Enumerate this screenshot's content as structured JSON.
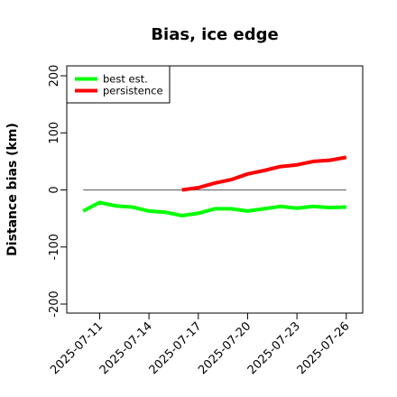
{
  "chart_data": {
    "type": "line",
    "title": "Bias, ice edge",
    "xlabel": "",
    "ylabel": "Distance bias (km)",
    "ylim": [
      -200,
      200
    ],
    "yticks": [
      -200,
      -100,
      0,
      100,
      200
    ],
    "xticks": [
      "2025-07-11",
      "2025-07-14",
      "2025-07-17",
      "2025-07-20",
      "2025-07-23",
      "2025-07-26"
    ],
    "xlim": [
      "2025-07-09",
      "2025-07-27"
    ],
    "grid": false,
    "legend_position": "top-left",
    "reference_line": {
      "y": 0,
      "x_start": "2025-07-10",
      "x_end": "2025-07-26",
      "color": "#707070"
    },
    "series": [
      {
        "name": "best est.",
        "color": "#00ff00",
        "x": [
          "2025-07-10",
          "2025-07-11",
          "2025-07-12",
          "2025-07-13",
          "2025-07-14",
          "2025-07-15",
          "2025-07-16",
          "2025-07-17",
          "2025-07-18",
          "2025-07-19",
          "2025-07-20",
          "2025-07-21",
          "2025-07-22",
          "2025-07-23",
          "2025-07-24",
          "2025-07-25",
          "2025-07-26"
        ],
        "values": [
          -37,
          -22,
          -28,
          -30,
          -37,
          -39,
          -45,
          -41,
          -33,
          -33,
          -37,
          -33,
          -29,
          -32,
          -29,
          -31,
          -30
        ]
      },
      {
        "name": "persistence",
        "color": "#ff0000",
        "x": [
          "2025-07-16",
          "2025-07-17",
          "2025-07-18",
          "2025-07-19",
          "2025-07-20",
          "2025-07-21",
          "2025-07-22",
          "2025-07-23",
          "2025-07-24",
          "2025-07-25",
          "2025-07-26"
        ],
        "values": [
          0,
          4,
          12,
          18,
          28,
          34,
          41,
          44,
          50,
          52,
          57
        ]
      }
    ]
  }
}
